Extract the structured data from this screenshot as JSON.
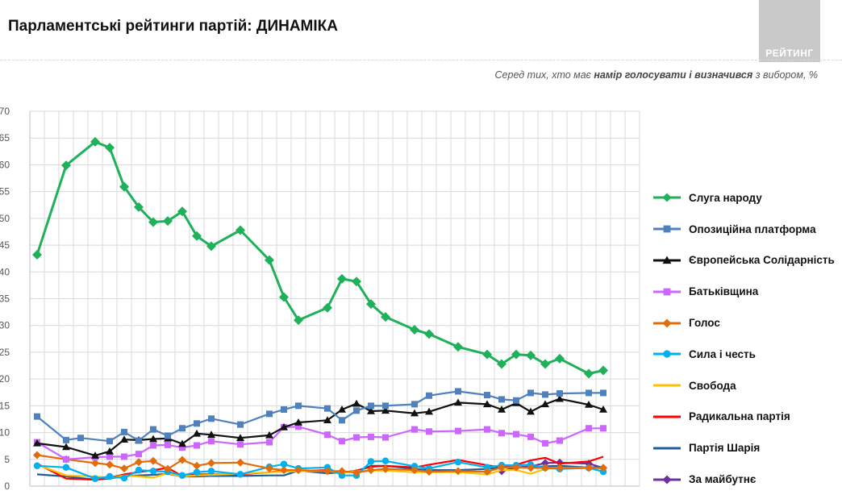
{
  "header": {
    "title": "Парламентські рейтинги партій: ДИНАМІКА",
    "logo_text": "РЕЙТИНГ",
    "subtitle_pre": "Серед тих, хто має ",
    "subtitle_bold": "намір голосувати і визначився",
    "subtitle_post": " з вибором, %"
  },
  "chart_data": {
    "type": "line",
    "ylim": [
      0,
      70
    ],
    "yticks": [
      0,
      5,
      10,
      15,
      20,
      25,
      30,
      35,
      40,
      45,
      50,
      55,
      60,
      65,
      70
    ],
    "ytick_labels": [
      "0",
      "5",
      "10",
      "15",
      "20",
      "25",
      "30",
      "35",
      "40",
      "45",
      "50",
      "55",
      "60",
      "65",
      "70"
    ],
    "x_count": 42,
    "grid": true,
    "legend_position": "right",
    "series": [
      {
        "name": "Слуга народу",
        "color": "#1fb05a",
        "marker": "diamond",
        "points": [
          [
            0,
            43.2
          ],
          [
            2,
            59.9
          ],
          [
            4,
            64.3
          ],
          [
            5,
            63.2
          ],
          [
            6,
            55.9
          ],
          [
            7,
            52.1
          ],
          [
            8,
            49.3
          ],
          [
            9,
            49.5
          ],
          [
            10,
            51.3
          ],
          [
            11,
            46.7
          ],
          [
            12,
            44.8
          ],
          [
            14,
            47.8
          ],
          [
            16,
            42.2
          ],
          [
            17,
            35.3
          ],
          [
            18,
            31.0
          ],
          [
            20,
            33.3
          ],
          [
            21,
            38.7
          ],
          [
            22,
            38.2
          ],
          [
            23,
            34.0
          ],
          [
            24,
            31.6
          ],
          [
            26,
            29.2
          ],
          [
            27,
            28.4
          ],
          [
            29,
            26.0
          ],
          [
            31,
            24.6
          ],
          [
            32,
            22.8
          ],
          [
            33,
            24.6
          ],
          [
            34,
            24.4
          ],
          [
            35,
            22.8
          ],
          [
            36,
            23.8
          ],
          [
            38,
            21.0
          ],
          [
            39,
            21.6
          ]
        ]
      },
      {
        "name": "Опозиційна платформа",
        "color": "#4f81bd",
        "marker": "square",
        "points": [
          [
            0,
            13.0
          ],
          [
            2,
            8.6
          ],
          [
            3,
            9.0
          ],
          [
            5,
            8.4
          ],
          [
            6,
            10.1
          ],
          [
            7,
            8.5
          ],
          [
            8,
            10.6
          ],
          [
            9,
            9.4
          ],
          [
            10,
            10.8
          ],
          [
            11,
            11.7
          ],
          [
            12,
            12.6
          ],
          [
            14,
            11.5
          ],
          [
            16,
            13.5
          ],
          [
            17,
            14.3
          ],
          [
            18,
            15.0
          ],
          [
            20,
            14.5
          ],
          [
            21,
            12.3
          ],
          [
            22,
            14.1
          ],
          [
            23,
            15.0
          ],
          [
            24,
            15.0
          ],
          [
            26,
            15.3
          ],
          [
            27,
            16.9
          ],
          [
            29,
            17.7
          ],
          [
            31,
            17.0
          ],
          [
            32,
            16.2
          ],
          [
            33,
            16.0
          ],
          [
            34,
            17.4
          ],
          [
            35,
            17.1
          ],
          [
            36,
            17.3
          ],
          [
            38,
            17.4
          ],
          [
            39,
            17.4
          ]
        ]
      },
      {
        "name": "Європейська Солідарність",
        "color": "#111111",
        "marker": "triangle",
        "points": [
          [
            0,
            8.0
          ],
          [
            2,
            7.3
          ],
          [
            4,
            5.7
          ],
          [
            5,
            6.5
          ],
          [
            6,
            8.7
          ],
          [
            7,
            8.6
          ],
          [
            8,
            8.8
          ],
          [
            9,
            8.9
          ],
          [
            10,
            7.9
          ],
          [
            11,
            9.8
          ],
          [
            12,
            9.6
          ],
          [
            14,
            9.0
          ],
          [
            16,
            9.5
          ],
          [
            17,
            11.0
          ],
          [
            18,
            11.9
          ],
          [
            20,
            12.3
          ],
          [
            21,
            14.3
          ],
          [
            22,
            15.4
          ],
          [
            23,
            14.0
          ],
          [
            24,
            14.1
          ],
          [
            26,
            13.6
          ],
          [
            27,
            13.9
          ],
          [
            29,
            15.6
          ],
          [
            31,
            15.3
          ],
          [
            32,
            14.3
          ],
          [
            33,
            15.5
          ],
          [
            34,
            13.9
          ],
          [
            35,
            15.3
          ],
          [
            36,
            16.3
          ],
          [
            38,
            15.2
          ],
          [
            39,
            14.3
          ]
        ]
      },
      {
        "name": "Батьківщина",
        "color": "#cc66ff",
        "marker": "square",
        "points": [
          [
            0,
            8.2
          ],
          [
            2,
            5.0
          ],
          [
            4,
            5.4
          ],
          [
            5,
            5.5
          ],
          [
            6,
            5.5
          ],
          [
            7,
            6.0
          ],
          [
            8,
            7.6
          ],
          [
            9,
            7.7
          ],
          [
            10,
            7.2
          ],
          [
            11,
            7.6
          ],
          [
            12,
            8.4
          ],
          [
            14,
            7.8
          ],
          [
            16,
            8.2
          ],
          [
            17,
            11.0
          ],
          [
            18,
            11.1
          ],
          [
            20,
            9.6
          ],
          [
            21,
            8.4
          ],
          [
            22,
            9.1
          ],
          [
            23,
            9.2
          ],
          [
            24,
            9.1
          ],
          [
            26,
            10.6
          ],
          [
            27,
            10.2
          ],
          [
            29,
            10.3
          ],
          [
            31,
            10.6
          ],
          [
            32,
            9.9
          ],
          [
            33,
            9.7
          ],
          [
            34,
            9.2
          ],
          [
            35,
            8.0
          ],
          [
            36,
            8.5
          ],
          [
            38,
            10.8
          ],
          [
            39,
            10.8
          ]
        ]
      },
      {
        "name": "Голос",
        "color": "#e36c0a",
        "marker": "diamond",
        "points": [
          [
            0,
            5.8
          ],
          [
            2,
            5.0
          ],
          [
            4,
            4.3
          ],
          [
            5,
            4.0
          ],
          [
            6,
            3.3
          ],
          [
            7,
            4.5
          ],
          [
            8,
            4.7
          ],
          [
            9,
            3.2
          ],
          [
            10,
            4.9
          ],
          [
            11,
            3.8
          ],
          [
            12,
            4.3
          ],
          [
            14,
            4.4
          ],
          [
            16,
            3.3
          ],
          [
            17,
            3.0
          ],
          [
            18,
            3.0
          ],
          [
            20,
            2.8
          ],
          [
            21,
            2.8
          ],
          [
            22,
            2.5
          ],
          [
            23,
            3.0
          ],
          [
            24,
            3.2
          ],
          [
            26,
            3.0
          ],
          [
            27,
            2.7
          ],
          [
            29,
            2.8
          ],
          [
            31,
            2.7
          ],
          [
            32,
            3.5
          ],
          [
            33,
            3.5
          ],
          [
            34,
            3.4
          ],
          [
            35,
            3.4
          ],
          [
            36,
            3.4
          ],
          [
            38,
            3.4
          ],
          [
            39,
            3.4
          ]
        ]
      },
      {
        "name": "Сила і честь",
        "color": "#00b0f0",
        "marker": "circle",
        "points": [
          [
            0,
            3.8
          ],
          [
            2,
            3.5
          ],
          [
            4,
            1.4
          ],
          [
            5,
            1.8
          ],
          [
            6,
            1.5
          ],
          [
            7,
            3.0
          ],
          [
            8,
            2.8
          ],
          [
            9,
            2.7
          ],
          [
            10,
            2.0
          ],
          [
            11,
            2.6
          ],
          [
            12,
            2.8
          ],
          [
            14,
            2.2
          ],
          [
            16,
            3.6
          ],
          [
            17,
            4.1
          ],
          [
            18,
            3.3
          ],
          [
            20,
            3.5
          ],
          [
            21,
            2.0
          ],
          [
            22,
            2.0
          ],
          [
            23,
            4.6
          ],
          [
            24,
            4.7
          ],
          [
            26,
            3.7
          ],
          [
            27,
            3.3
          ],
          [
            29,
            4.5
          ],
          [
            31,
            3.5
          ],
          [
            32,
            3.9
          ],
          [
            33,
            3.9
          ],
          [
            34,
            4.0
          ],
          [
            35,
            3.4
          ],
          [
            36,
            3.2
          ],
          [
            38,
            3.4
          ],
          [
            39,
            2.7
          ]
        ]
      },
      {
        "name": "Свобода",
        "color": "#ffc000",
        "marker": "none",
        "points": [
          [
            0,
            4.0
          ],
          [
            2,
            2.0
          ],
          [
            4,
            1.8
          ],
          [
            5,
            1.5
          ],
          [
            6,
            2.0
          ],
          [
            7,
            1.8
          ],
          [
            8,
            1.6
          ],
          [
            9,
            2.4
          ],
          [
            10,
            1.8
          ],
          [
            11,
            2.0
          ],
          [
            12,
            2.1
          ],
          [
            14,
            2.3
          ],
          [
            16,
            2.6
          ],
          [
            17,
            2.7
          ],
          [
            18,
            2.8
          ],
          [
            20,
            2.8
          ],
          [
            21,
            2.5
          ],
          [
            22,
            2.8
          ],
          [
            23,
            2.9
          ],
          [
            24,
            2.9
          ],
          [
            26,
            2.6
          ],
          [
            27,
            2.6
          ],
          [
            29,
            2.6
          ],
          [
            31,
            2.2
          ],
          [
            32,
            3.0
          ],
          [
            33,
            3.0
          ],
          [
            34,
            2.3
          ],
          [
            35,
            3.2
          ],
          [
            36,
            3.4
          ],
          [
            38,
            3.5
          ],
          [
            39,
            3.2
          ]
        ]
      },
      {
        "name": "Радикальна партія",
        "color": "#ff0000",
        "marker": "none",
        "points": [
          [
            0,
            4.2
          ],
          [
            2,
            1.4
          ],
          [
            4,
            1.2
          ],
          [
            5,
            1.6
          ],
          [
            6,
            2.2
          ],
          [
            7,
            2.6
          ],
          [
            8,
            3.0
          ],
          [
            9,
            3.4
          ],
          [
            10,
            1.9
          ],
          [
            11,
            2.2
          ],
          [
            12,
            2.2
          ],
          [
            14,
            2.2
          ],
          [
            16,
            2.6
          ],
          [
            17,
            2.9
          ],
          [
            18,
            2.8
          ],
          [
            20,
            3.0
          ],
          [
            21,
            2.5
          ],
          [
            22,
            2.9
          ],
          [
            23,
            3.6
          ],
          [
            24,
            3.8
          ],
          [
            26,
            3.5
          ],
          [
            27,
            4.0
          ],
          [
            29,
            4.9
          ],
          [
            31,
            3.9
          ],
          [
            32,
            3.5
          ],
          [
            33,
            4.0
          ],
          [
            34,
            4.8
          ],
          [
            35,
            5.3
          ],
          [
            36,
            4.2
          ],
          [
            38,
            4.6
          ],
          [
            39,
            5.5
          ]
        ]
      },
      {
        "name": "Партія Шарія",
        "color": "#1f5c99",
        "marker": "none",
        "points": [
          [
            0,
            2.2
          ],
          [
            2,
            1.8
          ],
          [
            4,
            1.2
          ],
          [
            5,
            1.4
          ],
          [
            6,
            1.9
          ],
          [
            7,
            2.0
          ],
          [
            8,
            2.1
          ],
          [
            9,
            2.3
          ],
          [
            10,
            1.8
          ],
          [
            11,
            1.8
          ],
          [
            12,
            1.9
          ],
          [
            14,
            1.9
          ],
          [
            16,
            2.0
          ],
          [
            17,
            2.0
          ],
          [
            18,
            2.9
          ],
          [
            20,
            2.4
          ],
          [
            21,
            2.6
          ],
          [
            22,
            2.8
          ],
          [
            23,
            3.8
          ],
          [
            24,
            3.8
          ],
          [
            26,
            3.2
          ],
          [
            27,
            3.0
          ],
          [
            29,
            3.0
          ],
          [
            31,
            3.2
          ],
          [
            32,
            3.5
          ],
          [
            33,
            3.5
          ],
          [
            34,
            3.5
          ],
          [
            35,
            3.7
          ],
          [
            36,
            3.8
          ],
          [
            38,
            3.5
          ],
          [
            39,
            3.6
          ]
        ]
      },
      {
        "name": "За майбутнє",
        "color": "#7030a0",
        "marker": "diamond",
        "points": [
          [
            32,
            2.8
          ],
          [
            33,
            3.5
          ],
          [
            34,
            3.7
          ],
          [
            35,
            4.3
          ],
          [
            36,
            4.4
          ],
          [
            38,
            4.2
          ],
          [
            39,
            3.4
          ]
        ]
      }
    ]
  }
}
